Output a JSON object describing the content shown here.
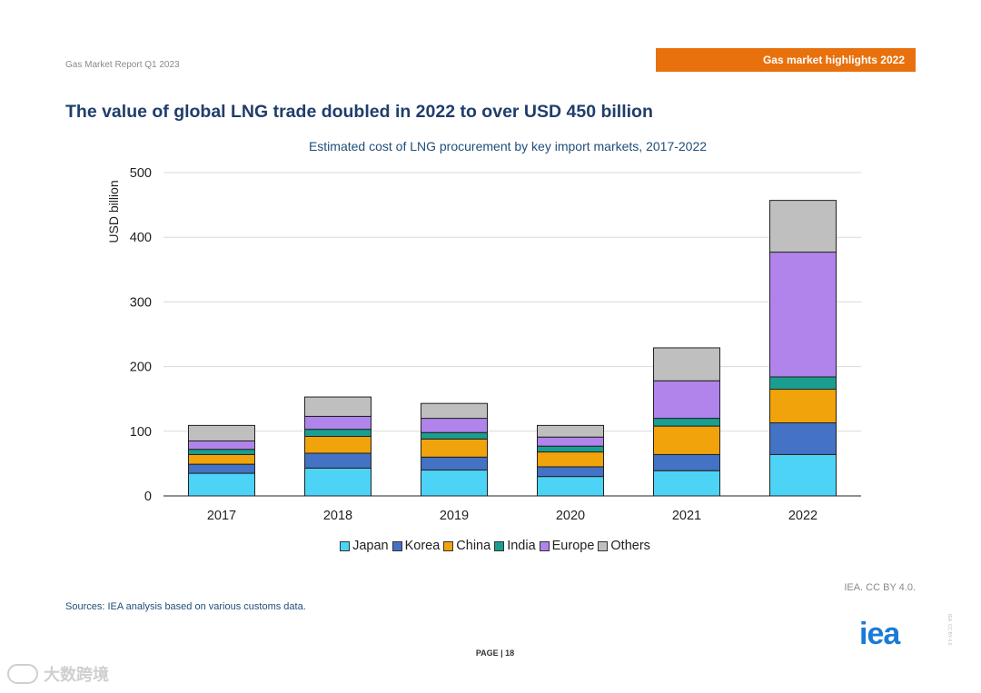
{
  "header": {
    "report_label": "Gas Market Report Q1 2023",
    "section_banner": "Gas market highlights 2022"
  },
  "title": "The value of global LNG trade doubled in 2022 to over USD 450 billion",
  "colors": {
    "banner": "#e8710e",
    "title": "#1f3e6b",
    "Japan": "#4dd3f5",
    "Korea": "#4472c4",
    "China": "#f0a30a",
    "India": "#1a9e8f",
    "Europe": "#b084eb",
    "Others": "#bfbfbf"
  },
  "chart_data": {
    "type": "bar",
    "stacked": true,
    "title": "Estimated cost of LNG procurement by key import markets, 2017-2022",
    "xlabel": "",
    "ylabel": "USD billion",
    "ylim": [
      0,
      500
    ],
    "yticks": [
      0,
      100,
      200,
      300,
      400,
      500
    ],
    "grid": true,
    "legend_position": "bottom",
    "categories": [
      "2017",
      "2018",
      "2019",
      "2020",
      "2021",
      "2022"
    ],
    "series": [
      {
        "name": "Japan",
        "values": [
          35,
          43,
          40,
          30,
          39,
          64
        ]
      },
      {
        "name": "Korea",
        "values": [
          14,
          23,
          20,
          15,
          25,
          49
        ]
      },
      {
        "name": "China",
        "values": [
          15,
          26,
          28,
          23,
          44,
          52
        ]
      },
      {
        "name": "India",
        "values": [
          8,
          11,
          10,
          9,
          12,
          19
        ]
      },
      {
        "name": "Europe",
        "values": [
          13,
          20,
          22,
          14,
          58,
          193
        ]
      },
      {
        "name": "Others",
        "values": [
          24,
          30,
          23,
          18,
          51,
          80
        ]
      }
    ]
  },
  "footer": {
    "credit": "IEA. CC BY 4.0.",
    "sources": "Sources: IEA analysis based on various customs data.",
    "page": "PAGE | 18",
    "logo_text": "iea",
    "side_note": "IEA. CC BY 4.0.",
    "watermark_text": "大数跨境"
  }
}
